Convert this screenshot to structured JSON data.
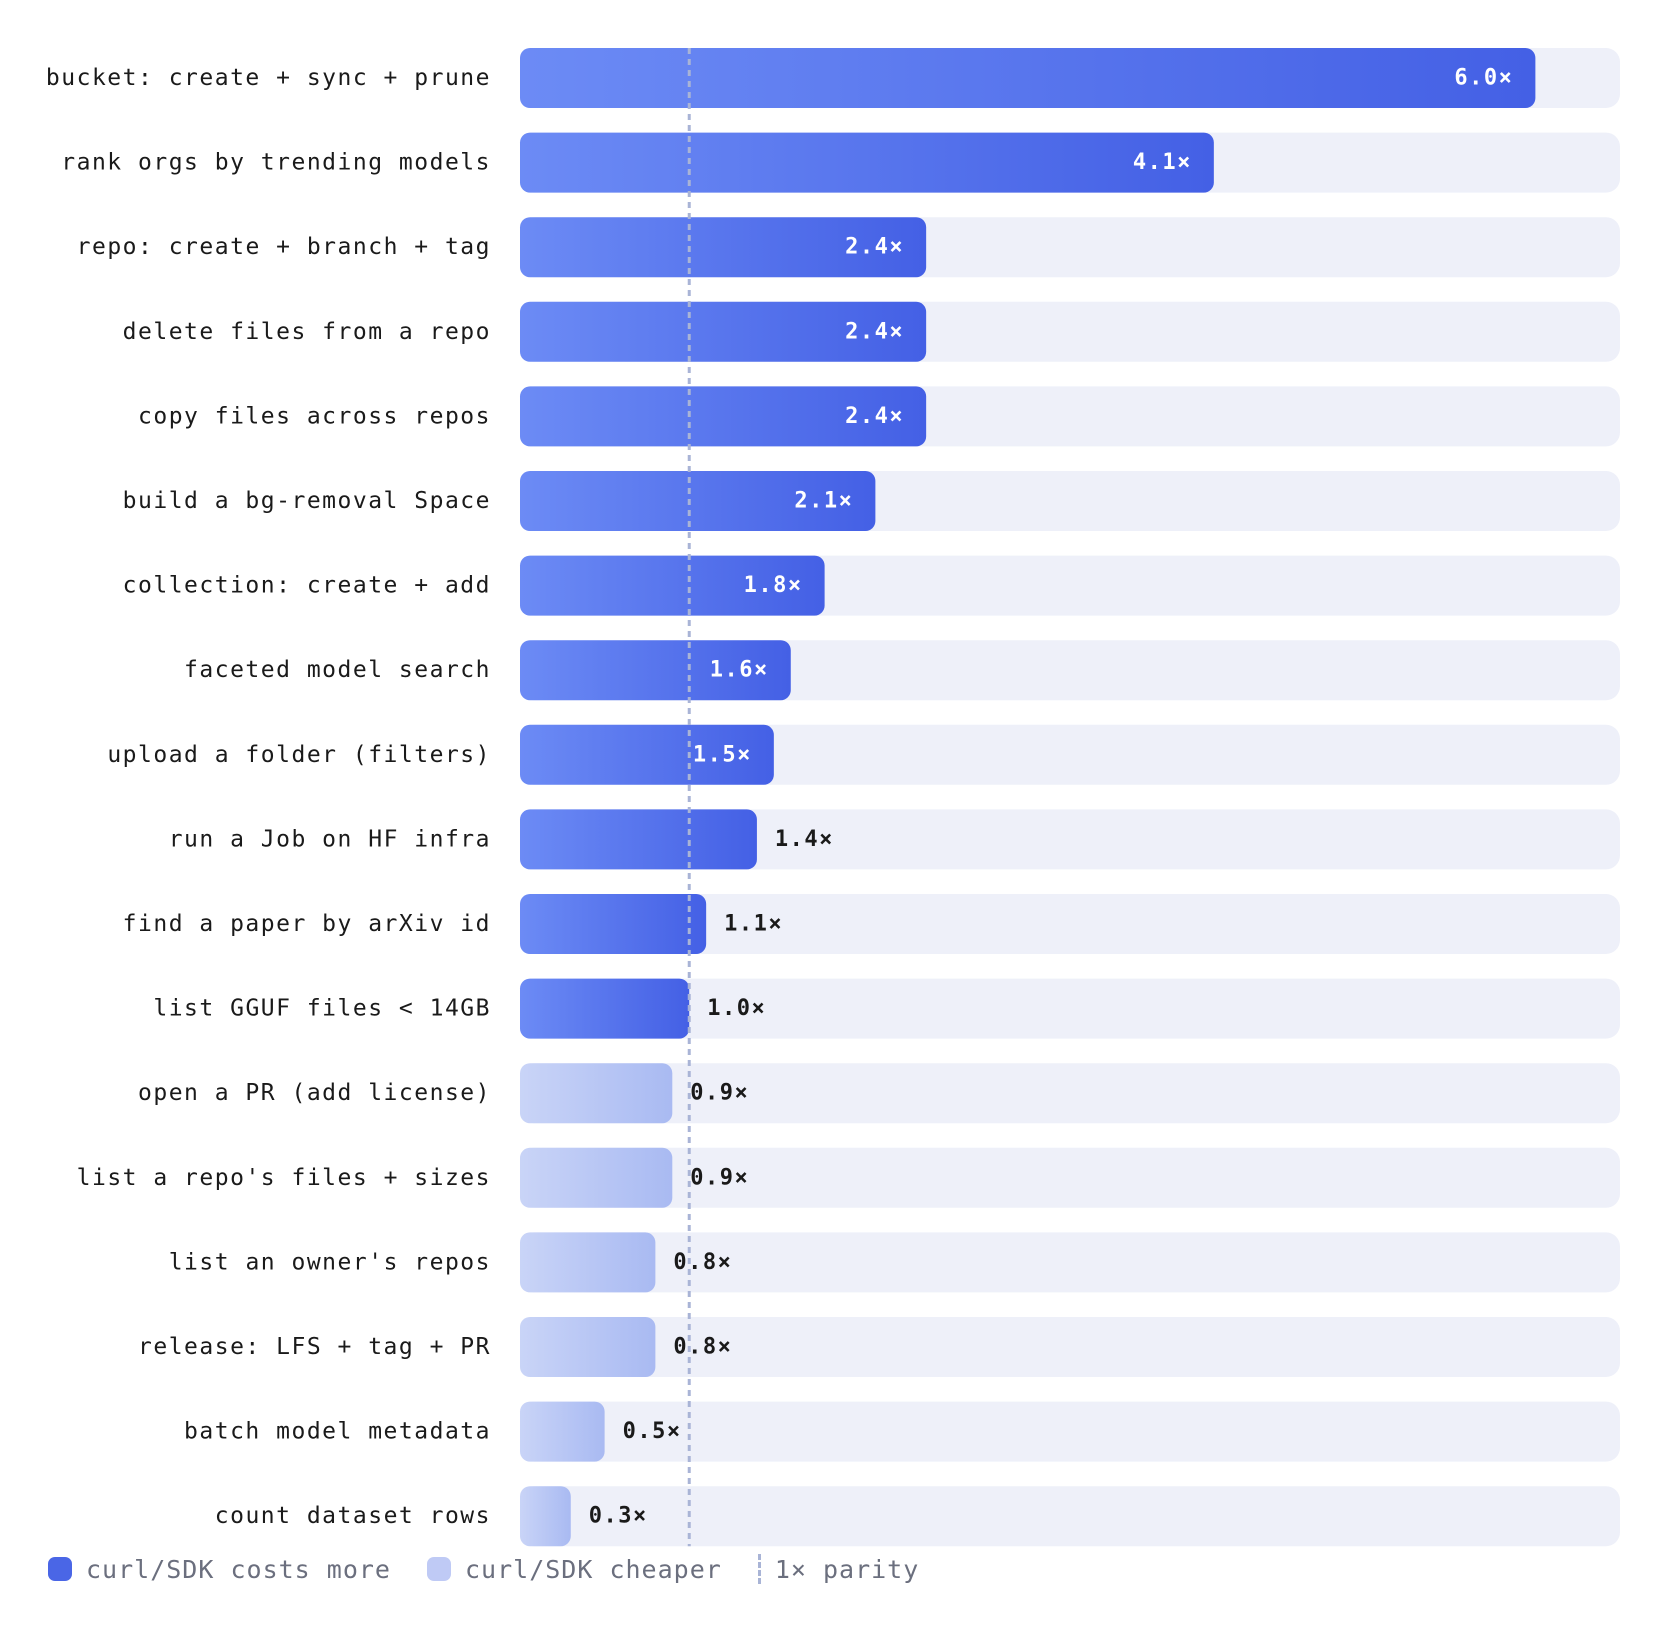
{
  "chart_data": {
    "type": "bar",
    "orientation": "horizontal",
    "categories": [
      "bucket: create + sync + prune",
      "rank orgs by trending models",
      "repo: create + branch + tag",
      "delete files from a repo",
      "copy files across repos",
      "build a bg-removal Space",
      "collection: create + add",
      "faceted model search",
      "upload a folder (filters)",
      "run a Job on HF infra",
      "find a paper by arXiv id",
      "list GGUF files < 14GB",
      "open a PR (add license)",
      "list a repo's files + sizes",
      "list an owner's repos",
      "release: LFS + tag + PR",
      "batch model metadata",
      "count dataset rows"
    ],
    "values": [
      6.0,
      4.1,
      2.4,
      2.4,
      2.4,
      2.1,
      1.8,
      1.6,
      1.5,
      1.4,
      1.1,
      1.0,
      0.9,
      0.9,
      0.8,
      0.8,
      0.5,
      0.3
    ],
    "value_labels": [
      "6.0×",
      "4.1×",
      "2.4×",
      "2.4×",
      "2.4×",
      "2.1×",
      "1.8×",
      "1.6×",
      "1.5×",
      "1.4×",
      "1.1×",
      "1.0×",
      "0.9×",
      "0.9×",
      "0.8×",
      "0.8×",
      "0.5×",
      "0.3×"
    ],
    "xlim": [
      0,
      6.5
    ],
    "reference_line": 1.0,
    "grid": false,
    "legend_position": "bottom-left",
    "colors": {
      "more_start": "#6c8bf5",
      "more_end": "#4460e5",
      "cheaper_start": "#c9d4f7",
      "cheaper_end": "#a9baf2",
      "track": "#eef0f9",
      "reference": "#a9b4d6",
      "label_text": "#1a1a1a",
      "value_inside": "#ffffff",
      "value_outside": "#1a1a1a"
    }
  },
  "legend": {
    "more_label": "curl/SDK costs more",
    "cheaper_label": "curl/SDK cheaper",
    "parity_label": "1× parity"
  }
}
